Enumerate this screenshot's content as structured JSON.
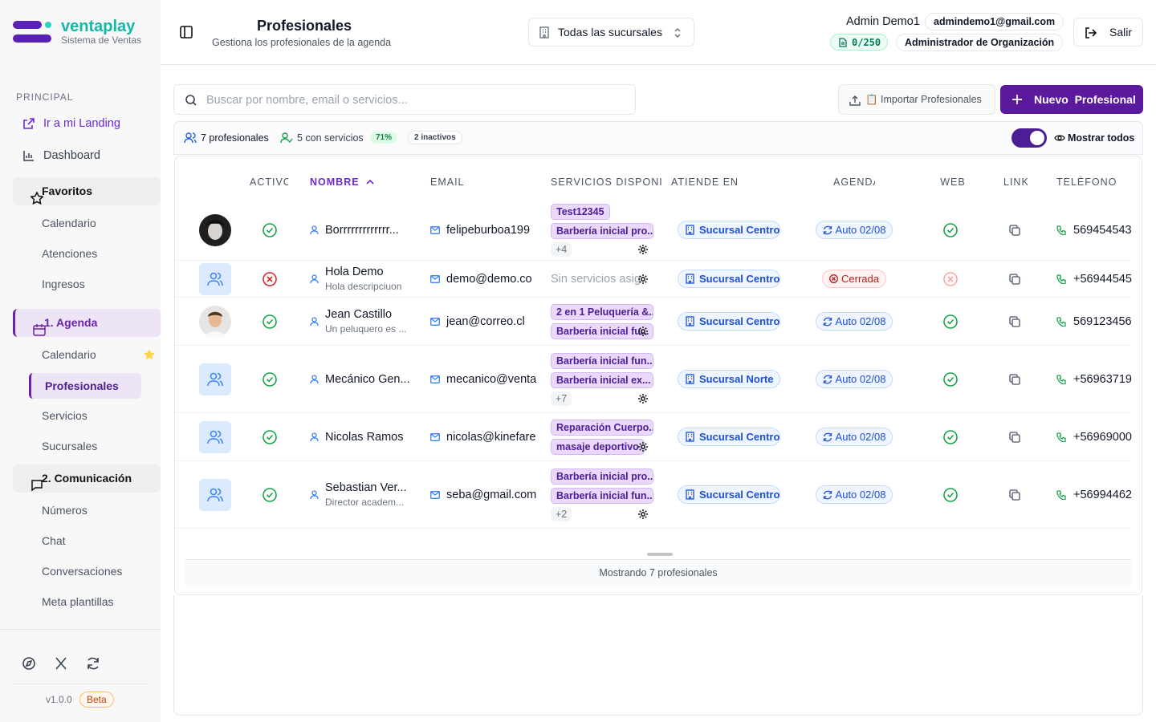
{
  "sidebar": {
    "brand": {
      "name": "ventaplay",
      "tagline": "Sistema de Ventas"
    },
    "section": "PRINCIPAL",
    "links": [
      "Ir a mi Landing",
      "Dashboard"
    ],
    "groups": [
      {
        "title": "Favoritos",
        "items": [
          "Calendario",
          "Atenciones",
          "Ingresos"
        ]
      },
      {
        "title": "1. Agenda",
        "items": [
          "Calendario",
          "Profesionales",
          "Servicios",
          "Sucursales"
        ]
      },
      {
        "title": "2. Comunicación",
        "items": [
          "Números",
          "Chat",
          "Conversaciones",
          "Meta plantillas"
        ]
      }
    ],
    "version": "v1.0.0",
    "badge": "Beta"
  },
  "header": {
    "title": "Profesionales",
    "subtitle": "Gestiona los profesionales de la agenda",
    "branch_selector": "Todas las sucursales",
    "user": "Admin Demo1",
    "email": "admindemo1@gmail.com",
    "quota": "0/250",
    "role": "Administrador de Organización",
    "logout": "Salir"
  },
  "toolbar": {
    "search_placeholder": "Buscar por nombre, email o servicios...",
    "import": "📋 Importar Profesionales",
    "new": "Nuevo  Profesional"
  },
  "summary": {
    "total": "7 profesionales",
    "with_services": "5 con servicios",
    "percent": "71%",
    "inactive": "2 inactivos",
    "toggle": "Mostrar todos"
  },
  "table": {
    "columns": [
      "ACTIVO",
      "NOMBRE",
      "EMAIL",
      "SERVICIOS DISPONIBI",
      "ATIENDE EN",
      "AGENDA",
      "WEB",
      "LINK",
      "TELÉFONO"
    ],
    "rows": [
      {
        "avatar": "photo",
        "active": true,
        "name": "Borrrrrrrrrrrrr...",
        "email": "felipeburboa199",
        "services": [
          "Test12345",
          "Barbería inicial pro..."
        ],
        "more": "+4",
        "branch": "Sucursal Centro",
        "agenda": "Auto 02/08",
        "web": true,
        "phone": "569454543"
      },
      {
        "avatar": "placeholder",
        "active": false,
        "name": "Hola Demo",
        "description": "Hola descripciuon",
        "email": "demo@demo.co",
        "services_note": "Sin servicios asig",
        "branch": "Sucursal Centro",
        "agenda": "Cerrada",
        "web": false,
        "phone": "+56944545"
      },
      {
        "avatar": "photo",
        "active": true,
        "name": "Jean Castillo",
        "description": "Un peluquero es ...",
        "email": "jean@correo.cl",
        "services": [
          "2 en 1 Peluquería &...",
          "Barbería inicial fu..."
        ],
        "branch": "Sucursal Centro",
        "agenda": "Auto 02/08",
        "web": true,
        "phone": "569123456"
      },
      {
        "avatar": "placeholder",
        "active": true,
        "name": "Mecánico Gen...",
        "email": "mecanico@venta",
        "services": [
          "Barbería inicial fun...",
          "Barbería inicial ex..."
        ],
        "more": "+7",
        "branch": "Sucursal Norte",
        "agenda": "Auto 02/08",
        "web": true,
        "phone": "+56963719"
      },
      {
        "avatar": "placeholder",
        "active": true,
        "name": "Nicolas Ramos",
        "email": "nicolas@kinefare",
        "services": [
          "Reparación Cuerpo...",
          "masaje deportivo"
        ],
        "branch": "Sucursal Centro",
        "agenda": "Auto 02/08",
        "web": true,
        "phone": "+56969000"
      },
      {
        "avatar": "placeholder",
        "active": true,
        "name": "Sebastian Ver...",
        "description": "Director academ...",
        "email": "seba@gmail.com",
        "services": [
          "Barbería inicial pro...",
          "Barbería inicial fun..."
        ],
        "more": "+2",
        "branch": "Sucursal Centro",
        "agenda": "Auto 02/08",
        "web": true,
        "phone": "+56994462"
      }
    ],
    "footer": "Mostrando 7 profesionales"
  }
}
